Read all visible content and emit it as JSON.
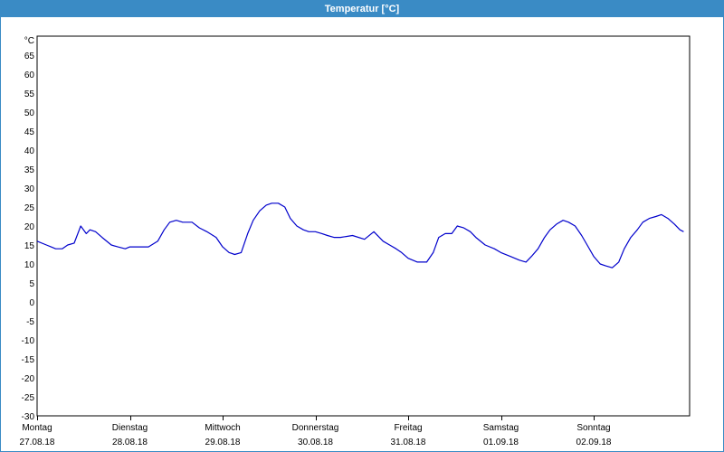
{
  "window": {
    "title": "Temperatur [°C]"
  },
  "chart_data": {
    "type": "line",
    "title": "Temperatur [°C]",
    "ylabel": "°C",
    "ylim": [
      -30,
      70
    ],
    "yticks": [
      65,
      60,
      55,
      50,
      45,
      40,
      35,
      30,
      25,
      20,
      15,
      10,
      5,
      0,
      -5,
      -10,
      -15,
      -20,
      -25,
      -30
    ],
    "xlim": [
      0,
      7
    ],
    "x_unit": "days since 27.08.18 00:00",
    "grid": true,
    "line_color": "#0000cc",
    "x_tick_labels": [
      {
        "day": "Montag",
        "date": "27.08.18"
      },
      {
        "day": "Dienstag",
        "date": "28.08.18"
      },
      {
        "day": "Mittwoch",
        "date": "29.08.18"
      },
      {
        "day": "Donnerstag",
        "date": "30.08.18"
      },
      {
        "day": "Freitag",
        "date": "31.08.18"
      },
      {
        "day": "Samstag",
        "date": "01.09.18"
      },
      {
        "day": "Sonntag",
        "date": "02.09.18"
      }
    ],
    "series": [
      {
        "name": "Temperatur",
        "x": [
          0.0,
          0.1,
          0.15,
          0.2,
          0.27,
          0.33,
          0.4,
          0.47,
          0.53,
          0.57,
          0.63,
          0.7,
          0.8,
          0.87,
          0.95,
          1.0,
          1.07,
          1.2,
          1.3,
          1.37,
          1.43,
          1.5,
          1.57,
          1.67,
          1.75,
          1.83,
          1.93,
          2.0,
          2.07,
          2.13,
          2.2,
          2.27,
          2.33,
          2.4,
          2.47,
          2.53,
          2.6,
          2.67,
          2.73,
          2.8,
          2.87,
          2.93,
          3.0,
          3.07,
          3.13,
          3.2,
          3.27,
          3.4,
          3.53,
          3.63,
          3.73,
          3.8,
          3.87,
          3.93,
          4.0,
          4.1,
          4.2,
          4.27,
          4.33,
          4.4,
          4.47,
          4.53,
          4.6,
          4.67,
          4.73,
          4.83,
          4.93,
          5.0,
          5.1,
          5.2,
          5.27,
          5.33,
          5.4,
          5.47,
          5.53,
          5.6,
          5.67,
          5.73,
          5.8,
          5.87,
          5.93,
          6.0,
          6.07,
          6.13,
          6.2,
          6.27,
          6.33,
          6.4,
          6.47,
          6.53,
          6.6,
          6.67,
          6.73,
          6.8,
          6.87,
          6.93,
          6.97
        ],
        "y": [
          16,
          15,
          14.5,
          14,
          14,
          15,
          15.5,
          20,
          18,
          19,
          18.5,
          17,
          15,
          14.5,
          14,
          14.5,
          14.5,
          14.5,
          16,
          19,
          21,
          21.5,
          21,
          21,
          19.5,
          18.5,
          17,
          14.5,
          13,
          12.5,
          13,
          18,
          21.5,
          24,
          25.5,
          26,
          26,
          25,
          22,
          20,
          19,
          18.5,
          18.5,
          18,
          17.5,
          17,
          17,
          17.5,
          16.5,
          18.5,
          16,
          15,
          14,
          13,
          11.5,
          10.5,
          10.5,
          13,
          17,
          18,
          18,
          20,
          19.5,
          18.5,
          17,
          15,
          14,
          13,
          12,
          11,
          10.5,
          12,
          14,
          17,
          19,
          20.5,
          21.5,
          21,
          20,
          17.5,
          15,
          12,
          10,
          9.5,
          9,
          10.5,
          14,
          17,
          19,
          21,
          22,
          22.5,
          23,
          22,
          20.5,
          19,
          18.5
        ]
      }
    ]
  }
}
